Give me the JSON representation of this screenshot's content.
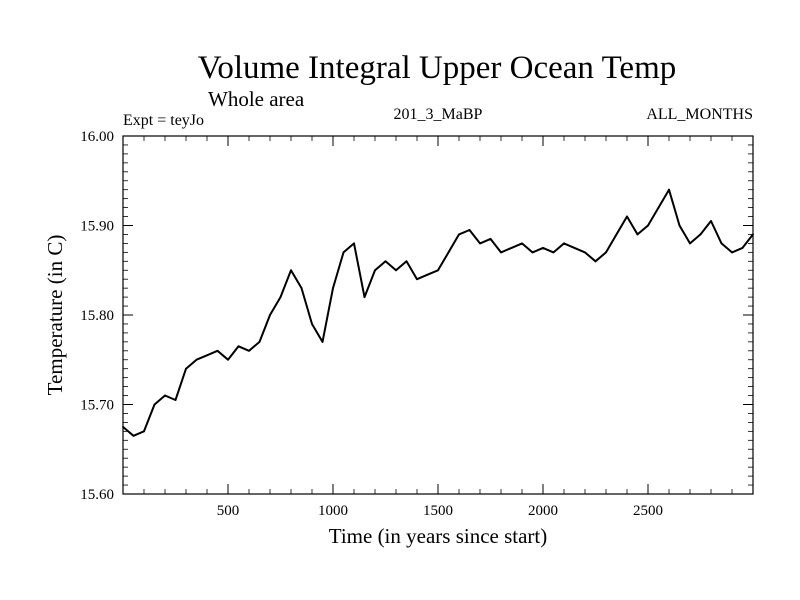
{
  "chart_data": {
    "type": "line",
    "title": "Volume Integral Upper Ocean Temp",
    "subtitle": "Whole area",
    "experiment_label": "Expt = teyJo",
    "run_label": "201_3_MaBP",
    "months_label": "ALL_MONTHS",
    "xlabel": "Time (in years since start)",
    "ylabel": "Temperature (in C)",
    "xlim": [
      0,
      3000
    ],
    "ylim": [
      15.6,
      16.0
    ],
    "x_ticks": [
      500,
      1000,
      1500,
      2000,
      2500
    ],
    "x_tick_labels": [
      "500",
      "1000",
      "1500",
      "2000",
      "2500"
    ],
    "y_ticks": [
      15.6,
      15.7,
      15.8,
      15.9,
      16.0
    ],
    "y_tick_labels": [
      "15.60",
      "15.70",
      "15.80",
      "15.90",
      "16.00"
    ],
    "series": [
      {
        "name": "Temperature",
        "color": "#000000",
        "x": [
          0,
          50,
          100,
          150,
          200,
          250,
          300,
          350,
          400,
          450,
          500,
          550,
          600,
          650,
          700,
          750,
          800,
          850,
          900,
          950,
          1000,
          1050,
          1100,
          1150,
          1200,
          1250,
          1300,
          1350,
          1400,
          1450,
          1500,
          1550,
          1600,
          1650,
          1700,
          1750,
          1800,
          1850,
          1900,
          1950,
          2000,
          2050,
          2100,
          2150,
          2200,
          2250,
          2300,
          2350,
          2400,
          2450,
          2500,
          2550,
          2600,
          2650,
          2700,
          2750,
          2800,
          2850,
          2900,
          2950,
          3000
        ],
        "y": [
          15.675,
          15.665,
          15.67,
          15.7,
          15.71,
          15.705,
          15.74,
          15.75,
          15.755,
          15.76,
          15.75,
          15.765,
          15.76,
          15.77,
          15.8,
          15.82,
          15.85,
          15.83,
          15.79,
          15.77,
          15.83,
          15.87,
          15.88,
          15.82,
          15.85,
          15.86,
          15.85,
          15.86,
          15.84,
          15.845,
          15.85,
          15.87,
          15.89,
          15.895,
          15.88,
          15.885,
          15.87,
          15.875,
          15.88,
          15.87,
          15.875,
          15.87,
          15.88,
          15.875,
          15.87,
          15.86,
          15.87,
          15.89,
          15.91,
          15.89,
          15.9,
          15.92,
          15.94,
          15.9,
          15.88,
          15.89,
          15.905,
          15.88,
          15.87,
          15.875,
          15.89
        ]
      }
    ]
  }
}
